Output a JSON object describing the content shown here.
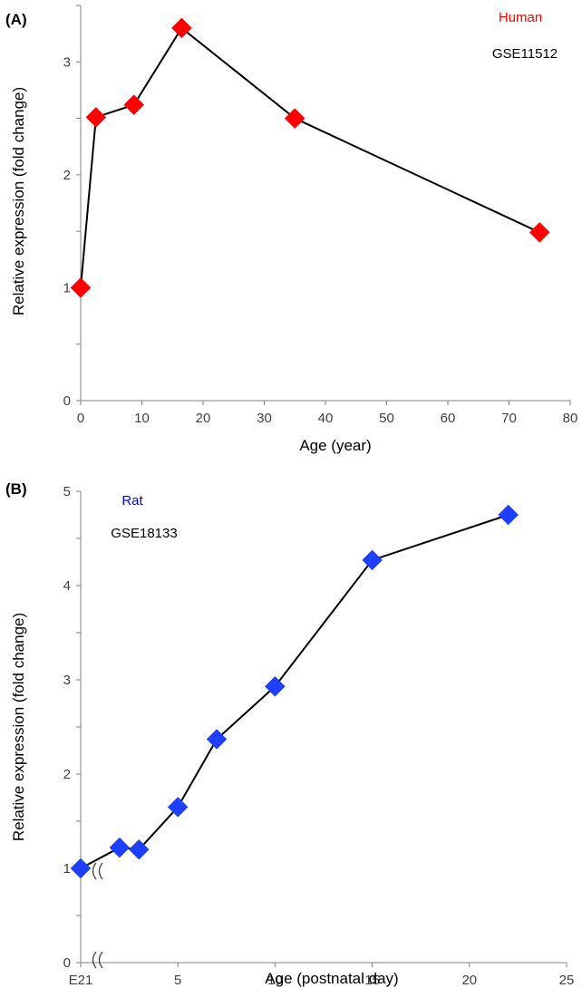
{
  "chart_data": [
    {
      "type": "line",
      "panel_label": "(A)",
      "title": "",
      "xlabel": "Age (year)",
      "ylabel": "Relative expression (fold change)",
      "xlim": [
        0,
        80
      ],
      "ylim": [
        0,
        3.5
      ],
      "xticks": [
        "0",
        "10",
        "20",
        "30",
        "40",
        "50",
        "60",
        "70",
        "80"
      ],
      "yticks": [
        "0",
        "1",
        "2",
        "3"
      ],
      "annotations": [
        {
          "text": "Human",
          "color": "#ff0000"
        },
        {
          "text": "GSE11512",
          "color": "#000000"
        }
      ],
      "marker": "diamond",
      "marker_color": "#ff0000",
      "series": [
        {
          "x": [
            0,
            2.5,
            8.7,
            16.5,
            35,
            75
          ],
          "y": [
            1.0,
            2.51,
            2.62,
            3.3,
            2.5,
            1.49
          ]
        }
      ]
    },
    {
      "type": "line",
      "panel_label": "(B)",
      "title": "",
      "xlabel": "Age (postnatal day)",
      "ylabel": "Relative expression (fold change)",
      "xlim": [
        0,
        25
      ],
      "ylim": [
        0,
        5
      ],
      "xticks": [
        "E21",
        "5",
        "10",
        "15",
        "20",
        "25"
      ],
      "yticks": [
        "0",
        "1",
        "2",
        "3",
        "4",
        "5"
      ],
      "axis_break": true,
      "annotations": [
        {
          "text": "Rat",
          "color": "#0000ff"
        },
        {
          "text": "GSE18133",
          "color": "#000000"
        }
      ],
      "marker": "diamond",
      "marker_color": "#1f3fff",
      "series": [
        {
          "x": [
            "E21",
            2,
            3,
            5,
            7,
            10,
            15,
            22
          ],
          "y": [
            1.0,
            1.22,
            1.2,
            1.65,
            2.37,
            2.93,
            4.27,
            4.75
          ]
        }
      ]
    }
  ]
}
